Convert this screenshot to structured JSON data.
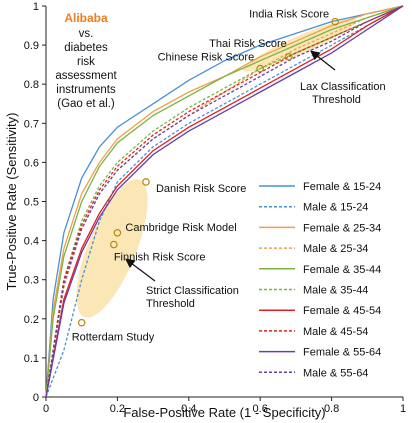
{
  "chart_data": {
    "type": "line",
    "title": "",
    "xlabel": "False-Positive Rate (1 - Specificity)",
    "ylabel": "True-Positive Rate (Sensitivity)",
    "xlim": [
      0,
      1
    ],
    "ylim": [
      0,
      1
    ],
    "x_ticks": [
      "0",
      "0.2",
      "0.4",
      "0.6",
      "0.8",
      "1"
    ],
    "y_ticks": [
      "0",
      "0.1",
      "0.2",
      "0.3",
      "0.4",
      "0.5",
      "0.6",
      "0.7",
      "0.8",
      "0.9",
      "1"
    ],
    "grid": false,
    "legend_placement": "lower-right",
    "inset_text": {
      "brand": "Alibaba",
      "brand_color": "#f07d1e",
      "lines": [
        "vs.",
        "diabetes",
        "risk",
        "assessment",
        "instruments",
        "(Gao et al.)"
      ]
    },
    "series": [
      {
        "name": "Female & 15-24",
        "color": "#4a90d9",
        "dash": "solid",
        "x": [
          0,
          0.02,
          0.05,
          0.1,
          0.15,
          0.2,
          0.3,
          0.4,
          0.5,
          0.6,
          0.7,
          0.8,
          0.9,
          1.0
        ],
        "y": [
          0,
          0.25,
          0.42,
          0.56,
          0.64,
          0.69,
          0.75,
          0.81,
          0.86,
          0.9,
          0.93,
          0.96,
          0.98,
          1.0
        ]
      },
      {
        "name": "Male & 15-24",
        "color": "#4a90d9",
        "dash": "dashed",
        "x": [
          0,
          0.05,
          0.1,
          0.15,
          0.2,
          0.3,
          0.4,
          0.5,
          0.6,
          0.7,
          0.8,
          0.9,
          1.0
        ],
        "y": [
          0,
          0.12,
          0.3,
          0.45,
          0.55,
          0.64,
          0.7,
          0.75,
          0.8,
          0.85,
          0.9,
          0.95,
          1.0
        ]
      },
      {
        "name": "Female & 25-34",
        "color": "#f0a04b",
        "dash": "solid",
        "x": [
          0,
          0.02,
          0.05,
          0.1,
          0.15,
          0.2,
          0.3,
          0.4,
          0.5,
          0.6,
          0.7,
          0.8,
          0.9,
          1.0
        ],
        "y": [
          0,
          0.22,
          0.38,
          0.52,
          0.6,
          0.66,
          0.73,
          0.78,
          0.82,
          0.87,
          0.91,
          0.95,
          0.98,
          1.0
        ]
      },
      {
        "name": "Male & 25-34",
        "color": "#f0a04b",
        "dash": "dashed",
        "x": [
          0,
          0.05,
          0.1,
          0.15,
          0.2,
          0.3,
          0.4,
          0.5,
          0.6,
          0.7,
          0.8,
          0.9,
          1.0
        ],
        "y": [
          0,
          0.28,
          0.43,
          0.52,
          0.58,
          0.66,
          0.72,
          0.78,
          0.84,
          0.89,
          0.93,
          0.97,
          1.0
        ]
      },
      {
        "name": "Female & 35-44",
        "color": "#7cb342",
        "dash": "solid",
        "x": [
          0,
          0.02,
          0.05,
          0.1,
          0.15,
          0.2,
          0.3,
          0.4,
          0.5,
          0.6,
          0.7,
          0.8,
          0.9,
          1.0
        ],
        "y": [
          0,
          0.2,
          0.36,
          0.5,
          0.59,
          0.65,
          0.72,
          0.77,
          0.82,
          0.86,
          0.9,
          0.94,
          0.97,
          1.0
        ]
      },
      {
        "name": "Male & 35-44",
        "color": "#7cb342",
        "dash": "dashed",
        "x": [
          0,
          0.05,
          0.1,
          0.15,
          0.2,
          0.3,
          0.4,
          0.5,
          0.6,
          0.7,
          0.8,
          0.9,
          1.0
        ],
        "y": [
          0,
          0.3,
          0.45,
          0.54,
          0.6,
          0.68,
          0.74,
          0.79,
          0.84,
          0.88,
          0.92,
          0.96,
          1.0
        ]
      },
      {
        "name": "Female & 45-54",
        "color": "#e02020",
        "dash": "solid",
        "x": [
          0,
          0.05,
          0.1,
          0.15,
          0.2,
          0.3,
          0.4,
          0.5,
          0.6,
          0.7,
          0.8,
          0.9,
          1.0
        ],
        "y": [
          0,
          0.25,
          0.38,
          0.47,
          0.54,
          0.63,
          0.69,
          0.74,
          0.79,
          0.84,
          0.89,
          0.95,
          1.0
        ]
      },
      {
        "name": "Male & 45-54",
        "color": "#e02020",
        "dash": "dashed",
        "x": [
          0,
          0.05,
          0.1,
          0.15,
          0.2,
          0.3,
          0.4,
          0.5,
          0.6,
          0.7,
          0.8,
          0.9,
          1.0
        ],
        "y": [
          0,
          0.3,
          0.44,
          0.53,
          0.59,
          0.67,
          0.73,
          0.78,
          0.83,
          0.88,
          0.92,
          0.96,
          1.0
        ]
      },
      {
        "name": "Female & 55-64",
        "color": "#6a3fa0",
        "dash": "solid",
        "x": [
          0,
          0.05,
          0.1,
          0.15,
          0.2,
          0.3,
          0.4,
          0.5,
          0.6,
          0.7,
          0.8,
          0.9,
          1.0
        ],
        "y": [
          0,
          0.24,
          0.37,
          0.46,
          0.53,
          0.62,
          0.68,
          0.73,
          0.78,
          0.83,
          0.88,
          0.94,
          1.0
        ]
      },
      {
        "name": "Male & 55-64",
        "color": "#6a3fa0",
        "dash": "dashed",
        "x": [
          0,
          0.05,
          0.1,
          0.15,
          0.2,
          0.3,
          0.4,
          0.5,
          0.6,
          0.7,
          0.8,
          0.9,
          1.0
        ],
        "y": [
          0,
          0.29,
          0.43,
          0.52,
          0.58,
          0.66,
          0.72,
          0.77,
          0.82,
          0.87,
          0.91,
          0.96,
          1.0
        ]
      }
    ],
    "risk_scores": [
      {
        "name": "India Risk Score",
        "x": 0.81,
        "y": 0.96
      },
      {
        "name": "Thai Risk Score",
        "x": 0.68,
        "y": 0.87
      },
      {
        "name": "Chinese Risk Score",
        "x": 0.6,
        "y": 0.84
      },
      {
        "name": "Danish Risk Score",
        "x": 0.28,
        "y": 0.55
      },
      {
        "name": "Cambridge Risk Model",
        "x": 0.2,
        "y": 0.42
      },
      {
        "name": "Finnish Risk Score",
        "x": 0.19,
        "y": 0.39
      },
      {
        "name": "Rotterdam Study",
        "x": 0.1,
        "y": 0.19
      }
    ],
    "annotations": [
      "Strict Classification Threshold",
      "Lax Classification Threshold"
    ],
    "shade_color": "#fbe7b6"
  }
}
